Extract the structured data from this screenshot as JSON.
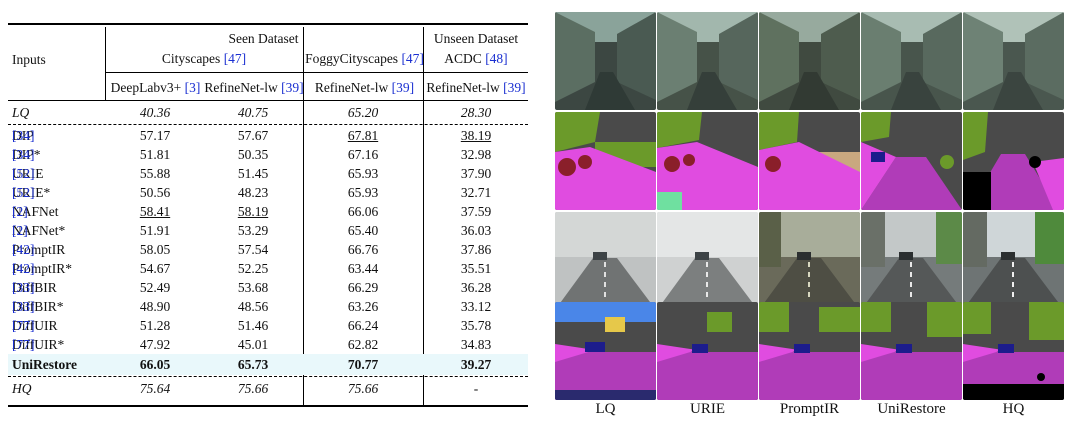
{
  "table": {
    "header": {
      "inputs": "Inputs",
      "seen": "Seen Dataset",
      "unseen": "Unseen Dataset",
      "cityscapes": "Cityscapes",
      "cityscapes_ref": "[47]",
      "foggy": "FoggyCityscapes",
      "foggy_ref": "[47]",
      "acdc": "ACDC",
      "acdc_ref": "[48]",
      "m1": "DeepLabv3+",
      "m1_ref": "[3]",
      "m2": "RefineNet-lw",
      "m2_ref": "[39]",
      "m3": "RefineNet-lw",
      "m3_ref": "[39]",
      "m4": "RefineNet-lw",
      "m4_ref": "[39]"
    },
    "rows": [
      {
        "name": "LQ",
        "ref": "",
        "v": [
          "40.36",
          "40.75",
          "65.20",
          "28.30"
        ]
      },
      {
        "name": "DIP",
        "ref": "[34]",
        "v": [
          "57.17",
          "57.67",
          "67.81",
          "38.19"
        ]
      },
      {
        "name": "DIP*",
        "ref": "[34]",
        "v": [
          "51.81",
          "50.35",
          "67.16",
          "32.98"
        ]
      },
      {
        "name": "URIE",
        "ref": "[52]",
        "v": [
          "55.88",
          "51.45",
          "65.93",
          "37.90"
        ]
      },
      {
        "name": "URIE*",
        "ref": "[52]",
        "v": [
          "50.56",
          "48.23",
          "65.93",
          "32.71"
        ]
      },
      {
        "name": "NAFNet",
        "ref": "[2]",
        "v": [
          "58.41",
          "58.19",
          "66.06",
          "37.59"
        ]
      },
      {
        "name": "NAFNet*",
        "ref": "[2]",
        "v": [
          "51.91",
          "53.29",
          "65.40",
          "36.03"
        ]
      },
      {
        "name": "PromptIR",
        "ref": "[42]",
        "v": [
          "58.05",
          "57.54",
          "66.76",
          "37.86"
        ]
      },
      {
        "name": "PromptIR*",
        "ref": "[42]",
        "v": [
          "54.67",
          "52.25",
          "63.44",
          "35.51"
        ]
      },
      {
        "name": "DiffBIR",
        "ref": "[33]",
        "v": [
          "52.49",
          "53.68",
          "66.29",
          "36.28"
        ]
      },
      {
        "name": "DiffBIR*",
        "ref": "[33]",
        "v": [
          "48.90",
          "48.56",
          "63.26",
          "33.12"
        ]
      },
      {
        "name": "DiffUIR",
        "ref": "[77]",
        "v": [
          "51.28",
          "51.46",
          "66.24",
          "35.78"
        ]
      },
      {
        "name": "DiffUIR*",
        "ref": "[77]",
        "v": [
          "47.92",
          "45.01",
          "62.82",
          "34.83"
        ]
      },
      {
        "name": "UniRestore",
        "ref": "",
        "v": [
          "66.05",
          "65.73",
          "70.77",
          "39.27"
        ]
      },
      {
        "name": "HQ",
        "ref": "",
        "v": [
          "75.64",
          "75.66",
          "75.66",
          "-"
        ]
      }
    ]
  },
  "figure": {
    "labels": [
      "LQ",
      "URIE",
      "PromptIR",
      "UniRestore",
      "HQ"
    ]
  },
  "colors": {
    "highlight": "#e9f8fb",
    "ref_blue": "#1a2fd1",
    "seg_road": "#b03cb8",
    "seg_sidewalk": "#e04ce0",
    "seg_vegetation": "#6b9a2a",
    "seg_building": "#4a4a4a",
    "seg_car": "#1c1c8c",
    "seg_sky": "#4a86e8"
  }
}
